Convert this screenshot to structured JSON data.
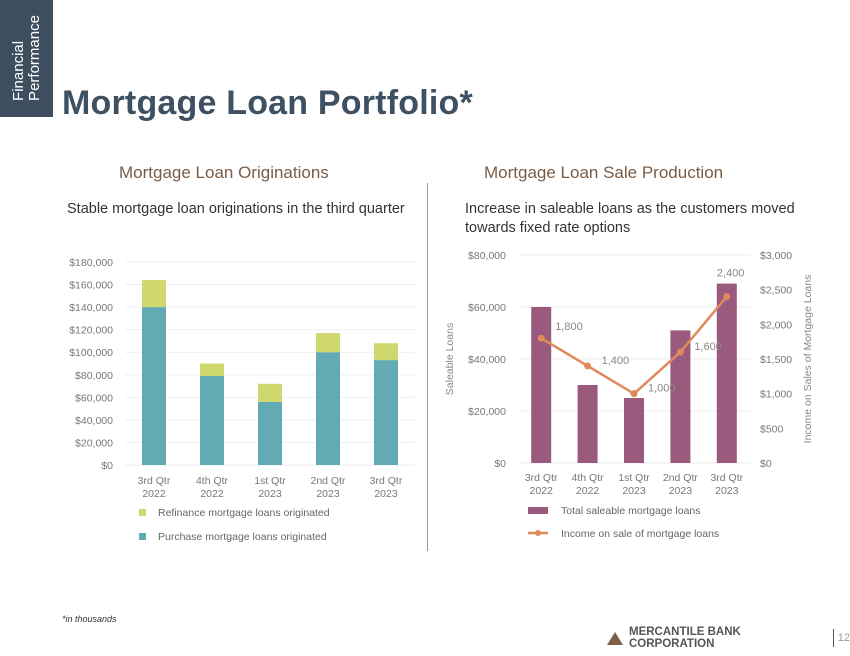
{
  "sidebar_label": [
    "Financial",
    "Performance"
  ],
  "title": "Mortgage Loan Portfolio*",
  "left": {
    "heading": "Mortgage Loan Originations",
    "description": "Stable mortgage loan originations in the third quarter"
  },
  "right": {
    "heading": "Mortgage Loan Sale Production",
    "description": "Increase in saleable loans as the customers moved towards fixed rate options"
  },
  "footnote": "*in thousands",
  "footer": {
    "company": "MERCANTILE BANK CORPORATION",
    "page": "12"
  },
  "chart_data": [
    {
      "type": "bar",
      "stacked": true,
      "categories": [
        [
          "3rd Qtr",
          "2022"
        ],
        [
          "4th Qtr",
          "2022"
        ],
        [
          "1st Qtr",
          "2023"
        ],
        [
          "2nd Qtr",
          "2023"
        ],
        [
          "3rd Qtr",
          "2023"
        ]
      ],
      "series": [
        {
          "name": "Purchase mortgage loans originated",
          "color": "#62abb5",
          "values": [
            140000,
            79000,
            56000,
            100000,
            93000
          ]
        },
        {
          "name": "Refinance mortgage loans originated",
          "color": "#cfd86d",
          "values": [
            24000,
            11000,
            16000,
            17000,
            15000
          ]
        }
      ],
      "ylim": [
        0,
        180000
      ],
      "yticks": [
        "$0",
        "$20,000",
        "$40,000",
        "$60,000",
        "$80,000",
        "$100,000",
        "$120,000",
        "$140,000",
        "$160,000",
        "$180,000"
      ],
      "grid": true,
      "legend": "bottom"
    },
    {
      "type": "bar+line",
      "categories": [
        [
          "3rd Qtr",
          "2022"
        ],
        [
          "4th Qtr",
          "2022"
        ],
        [
          "1st Qtr",
          "2023"
        ],
        [
          "2nd Qtr",
          "2023"
        ],
        [
          "3rd Qtr",
          "2023"
        ]
      ],
      "series": [
        {
          "name": "Total saleable mortgage loans",
          "type": "bar",
          "axis": "left",
          "color": "#9a5a7e",
          "values": [
            60000,
            30000,
            25000,
            51000,
            69000
          ]
        },
        {
          "name": "Income on sale of mortgage loans",
          "type": "line",
          "axis": "right",
          "color": "#e0895a",
          "values": [
            1800,
            1400,
            1000,
            1600,
            2400
          ],
          "labels": [
            "1,800",
            "1,400",
            "1,000",
            "1,600",
            "2,400"
          ]
        }
      ],
      "ylabel": "Saleable Loans",
      "ylim": [
        0,
        80000
      ],
      "yticks": [
        "$0",
        "$20,000",
        "$40,000",
        "$60,000",
        "$80,000"
      ],
      "y2label": "Income on Sales of Mortgage Loans",
      "y2lim": [
        0,
        3000
      ],
      "y2ticks": [
        "$0",
        "$500",
        "$1,000",
        "$1,500",
        "$2,000",
        "$2,500",
        "$3,000"
      ],
      "grid": true,
      "legend": "bottom"
    }
  ]
}
